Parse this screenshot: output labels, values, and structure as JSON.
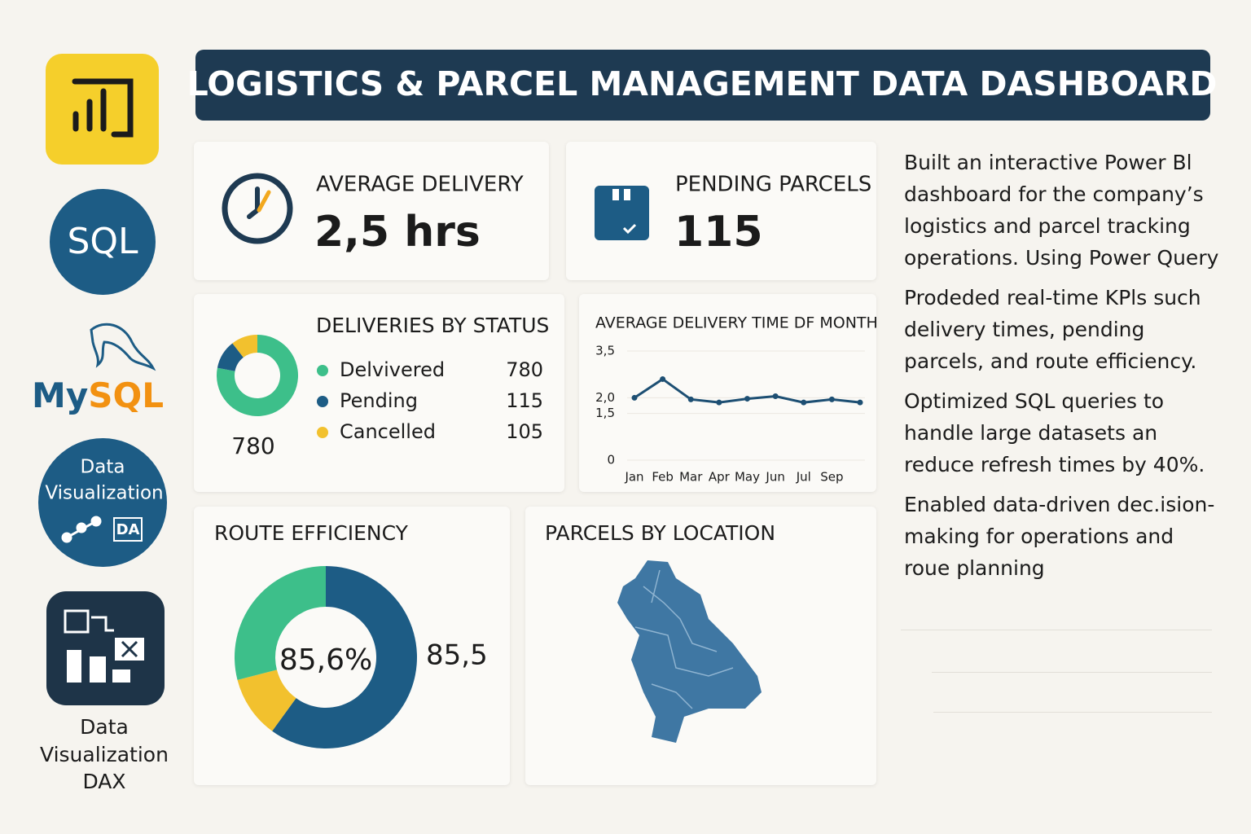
{
  "header": {
    "title": "LOGISTICS & PARCEL MANAGEMENT DATA DASHBOARD"
  },
  "sidebar": {
    "sql": "SQL",
    "mysql": {
      "prefix": "My",
      "suffix": "SQL"
    },
    "dataviz": [
      "Data",
      "Visualization"
    ],
    "dataviz_badge": "DA",
    "caption": [
      "Data",
      "Visualization",
      "DAX"
    ]
  },
  "kpis": [
    {
      "label": "AVERAGE DELIVERY",
      "value": "2,5 hrs"
    },
    {
      "label": "PENDING PARCELS",
      "value": "115"
    }
  ],
  "status_chart": {
    "type": "pie",
    "title": "DELIVERIES BY STATUS",
    "categories": [
      "Delvivered",
      "Pending",
      "Cancelled"
    ],
    "values": [
      780,
      115,
      105
    ],
    "colors": [
      "#3dbf8a",
      "#1d5c85",
      "#f2c12e"
    ]
  },
  "line_chart": {
    "type": "line",
    "title": "AVERAGE DELIVERY TIME DF MONTH",
    "categories": [
      "Jan",
      "Feb",
      "Mar",
      "Apr",
      "May",
      "Jun",
      "Jul",
      "Sep",
      null
    ],
    "values": [
      2.0,
      2.6,
      1.95,
      1.85,
      1.97,
      2.05,
      1.85,
      1.95,
      1.85
    ],
    "color": "#1d4f73",
    "ylim": [
      0,
      3.5
    ],
    "yticks": [
      0,
      {
        "value": 1.5,
        "label": "1,5"
      },
      {
        "value": 2,
        "label": "2,0"
      },
      {
        "value": 3.5,
        "label": "3,5"
      }
    ],
    "grid": true
  },
  "route_chart": {
    "type": "pie",
    "title": "ROUTE EFFICIENCY",
    "values": [
      60,
      11,
      29
    ],
    "colors": [
      "#1d5c85",
      "#f2c12e",
      "#3dbf8a"
    ],
    "center_label": "85,6%",
    "side_label": "85,5"
  },
  "map": {
    "title": "PARCELS BY LOCATION"
  },
  "description": [
    "Built an interactive Power Bl dashboard for the company’s logistics and parcel tracking operations. Using Power Query",
    "Prodeded real-time KPls such delivery times, pending parcels, and route efficiency.",
    "Optimized SQL queries to handle large datasets an reduce refresh times by 40%.",
    "Enabled data-driven dec.ision-making for operations and roue planning"
  ]
}
